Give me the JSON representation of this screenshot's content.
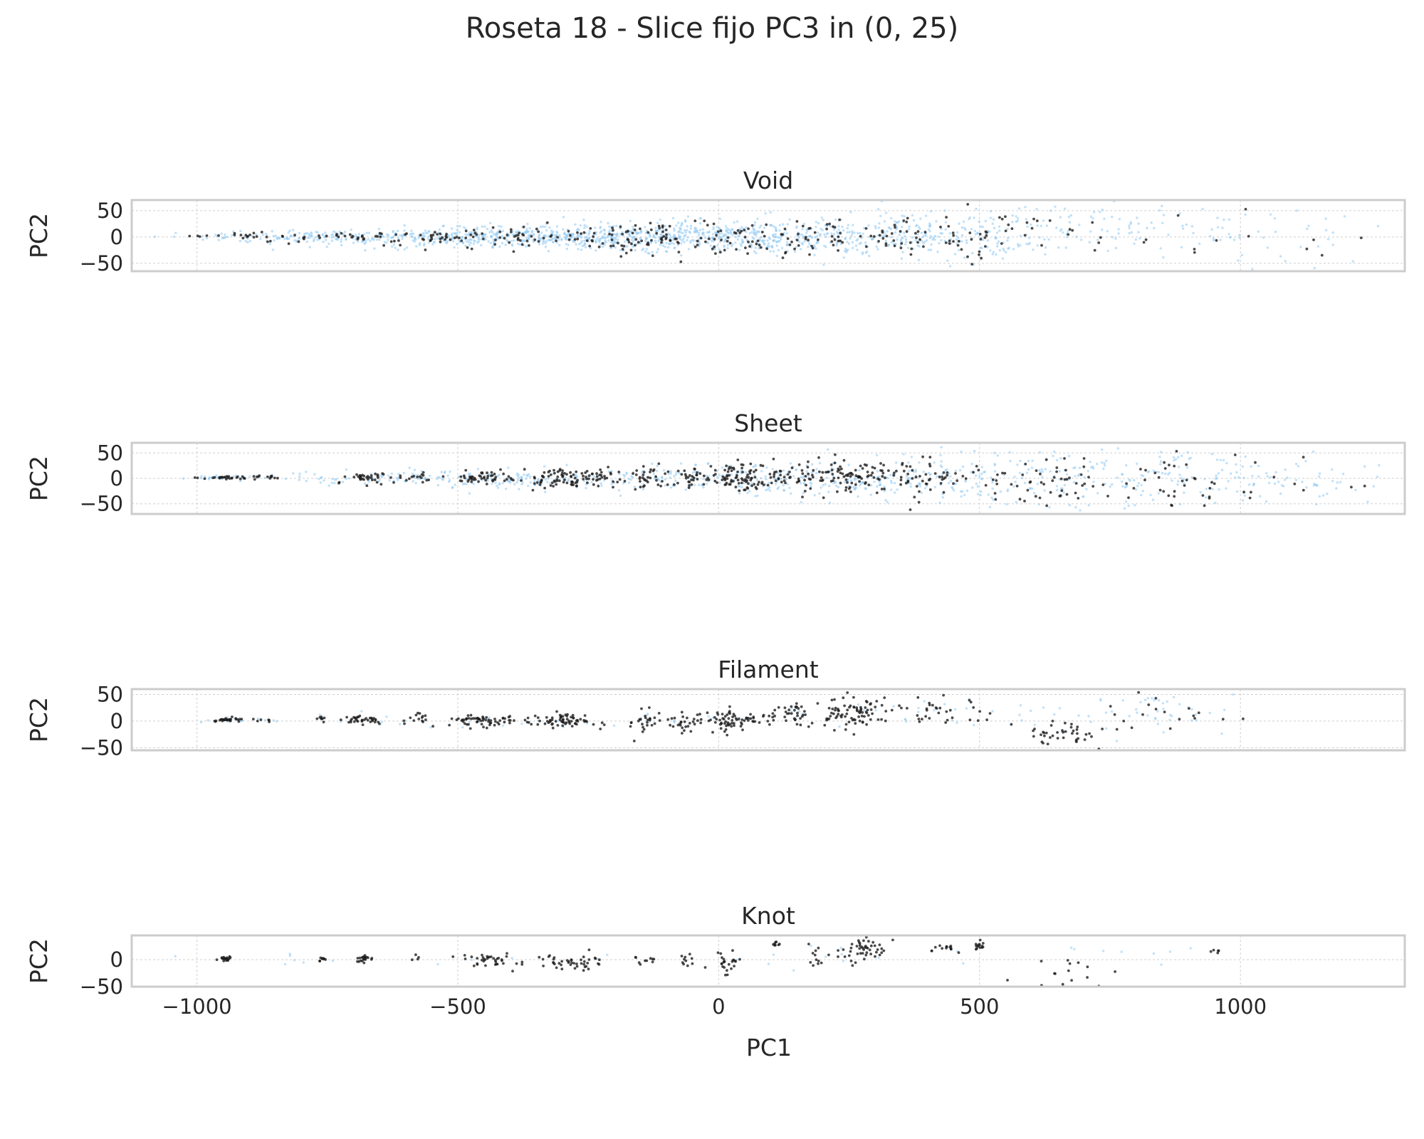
{
  "chart_data": {
    "type": "scatter",
    "title": "Roseta 18 - Slice fijo PC3 in (0, 25)",
    "xlabel": "PC1",
    "ylabel": "PC2",
    "xlim": [
      -1125,
      1315
    ],
    "x_ticks": [
      -1000,
      -500,
      0,
      500,
      1000
    ],
    "x_tick_labels": [
      "−1000",
      "−500",
      "0",
      "500",
      "1000"
    ],
    "grid": true,
    "colors": {
      "background_points": "#8ec9f2",
      "highlight_points": "#1e1e1e"
    },
    "panels": [
      {
        "title": "Void",
        "ylim": [
          -65,
          70
        ],
        "y_ticks": [
          50,
          0,
          -50
        ],
        "y_tick_labels": [
          "50",
          "0",
          "−50"
        ],
        "highlight_clusters": [
          {
            "x": -985,
            "y": 2,
            "sx": 12,
            "sy": 1,
            "n": 5
          },
          {
            "x": -900,
            "y": 2,
            "sx": 25,
            "sy": 3,
            "n": 12
          },
          {
            "x": -740,
            "y": 0,
            "sx": 60,
            "sy": 5,
            "n": 30
          },
          {
            "x": -560,
            "y": 0,
            "sx": 60,
            "sy": 8,
            "n": 35
          },
          {
            "x": -400,
            "y": 0,
            "sx": 70,
            "sy": 11,
            "n": 45
          },
          {
            "x": -200,
            "y": 0,
            "sx": 80,
            "sy": 14,
            "n": 60
          },
          {
            "x": 0,
            "y": 0,
            "sx": 90,
            "sy": 16,
            "n": 70
          },
          {
            "x": 200,
            "y": 0,
            "sx": 80,
            "sy": 18,
            "n": 50
          },
          {
            "x": 380,
            "y": 5,
            "sx": 60,
            "sy": 20,
            "n": 35
          },
          {
            "x": 520,
            "y": 5,
            "sx": 45,
            "sy": 25,
            "n": 25
          },
          {
            "x": 720,
            "y": 15,
            "sx": 90,
            "sy": 22,
            "n": 14
          },
          {
            "x": 1050,
            "y": -5,
            "sx": 90,
            "sy": 40,
            "n": 10
          }
        ],
        "background_clusters": [
          {
            "x": -720,
            "y": 0,
            "sx": 150,
            "sy": 6,
            "n": 180
          },
          {
            "x": -420,
            "y": 0,
            "sx": 140,
            "sy": 10,
            "n": 320
          },
          {
            "x": -120,
            "y": 0,
            "sx": 150,
            "sy": 14,
            "n": 420
          },
          {
            "x": 180,
            "y": 0,
            "sx": 150,
            "sy": 17,
            "n": 300
          },
          {
            "x": 470,
            "y": 5,
            "sx": 120,
            "sy": 22,
            "n": 180
          },
          {
            "x": 800,
            "y": 15,
            "sx": 150,
            "sy": 28,
            "n": 90
          },
          {
            "x": 1100,
            "y": 0,
            "sx": 100,
            "sy": 35,
            "n": 30
          }
        ]
      },
      {
        "title": "Sheet",
        "ylim": [
          -70,
          70
        ],
        "y_ticks": [
          50,
          0,
          -50
        ],
        "y_tick_labels": [
          "50",
          "0",
          "−50"
        ],
        "highlight_clusters": [
          {
            "x": -940,
            "y": 2,
            "sx": 25,
            "sy": 2,
            "n": 30
          },
          {
            "x": -860,
            "y": 2,
            "sx": 12,
            "sy": 2,
            "n": 8
          },
          {
            "x": -680,
            "y": 0,
            "sx": 22,
            "sy": 5,
            "n": 35
          },
          {
            "x": -580,
            "y": 2,
            "sx": 18,
            "sy": 5,
            "n": 15
          },
          {
            "x": -450,
            "y": 0,
            "sx": 30,
            "sy": 7,
            "n": 50
          },
          {
            "x": -310,
            "y": 0,
            "sx": 25,
            "sy": 10,
            "n": 60
          },
          {
            "x": -230,
            "y": 0,
            "sx": 25,
            "sy": 10,
            "n": 40
          },
          {
            "x": -140,
            "y": 0,
            "sx": 15,
            "sy": 10,
            "n": 30
          },
          {
            "x": -60,
            "y": 0,
            "sx": 20,
            "sy": 10,
            "n": 30
          },
          {
            "x": 30,
            "y": 0,
            "sx": 30,
            "sy": 12,
            "n": 80
          },
          {
            "x": 130,
            "y": 5,
            "sx": 35,
            "sy": 14,
            "n": 50
          },
          {
            "x": 250,
            "y": 0,
            "sx": 40,
            "sy": 15,
            "n": 80
          },
          {
            "x": 400,
            "y": 0,
            "sx": 50,
            "sy": 20,
            "n": 60
          },
          {
            "x": 600,
            "y": -10,
            "sx": 70,
            "sy": 22,
            "n": 50
          },
          {
            "x": 850,
            "y": -5,
            "sx": 80,
            "sy": 28,
            "n": 40
          },
          {
            "x": 1100,
            "y": 0,
            "sx": 70,
            "sy": 30,
            "n": 8
          }
        ],
        "background_clusters": [
          {
            "x": -940,
            "y": 2,
            "sx": 35,
            "sy": 2,
            "n": 25
          },
          {
            "x": -660,
            "y": 0,
            "sx": 110,
            "sy": 6,
            "n": 80
          },
          {
            "x": -380,
            "y": 0,
            "sx": 110,
            "sy": 9,
            "n": 120
          },
          {
            "x": -100,
            "y": 0,
            "sx": 110,
            "sy": 12,
            "n": 120
          },
          {
            "x": 200,
            "y": 0,
            "sx": 120,
            "sy": 18,
            "n": 160
          },
          {
            "x": 500,
            "y": 0,
            "sx": 120,
            "sy": 25,
            "n": 160
          },
          {
            "x": 850,
            "y": 0,
            "sx": 150,
            "sy": 30,
            "n": 150
          },
          {
            "x": 1150,
            "y": 0,
            "sx": 80,
            "sy": 30,
            "n": 40
          }
        ]
      },
      {
        "title": "Filament",
        "ylim": [
          -55,
          60
        ],
        "y_ticks": [
          50,
          0,
          -50
        ],
        "y_tick_labels": [
          "50",
          "0",
          "−50"
        ],
        "highlight_clusters": [
          {
            "x": -945,
            "y": 2,
            "sx": 15,
            "sy": 2,
            "n": 30
          },
          {
            "x": -870,
            "y": 2,
            "sx": 15,
            "sy": 2,
            "n": 6
          },
          {
            "x": -760,
            "y": 5,
            "sx": 5,
            "sy": 3,
            "n": 8
          },
          {
            "x": -680,
            "y": 2,
            "sx": 20,
            "sy": 5,
            "n": 35
          },
          {
            "x": -580,
            "y": 5,
            "sx": 12,
            "sy": 5,
            "n": 15
          },
          {
            "x": -450,
            "y": 0,
            "sx": 30,
            "sy": 6,
            "n": 60
          },
          {
            "x": -300,
            "y": 0,
            "sx": 35,
            "sy": 8,
            "n": 70
          },
          {
            "x": -140,
            "y": 0,
            "sx": 12,
            "sy": 10,
            "n": 25
          },
          {
            "x": -70,
            "y": 0,
            "sx": 20,
            "sy": 10,
            "n": 25
          },
          {
            "x": 20,
            "y": 0,
            "sx": 25,
            "sy": 10,
            "n": 70
          },
          {
            "x": 140,
            "y": 10,
            "sx": 25,
            "sy": 12,
            "n": 40
          },
          {
            "x": 260,
            "y": 15,
            "sx": 30,
            "sy": 15,
            "n": 80
          },
          {
            "x": 440,
            "y": 20,
            "sx": 40,
            "sy": 15,
            "n": 35
          },
          {
            "x": 650,
            "y": -25,
            "sx": 40,
            "sy": 12,
            "n": 40
          },
          {
            "x": 850,
            "y": 25,
            "sx": 60,
            "sy": 20,
            "n": 20
          }
        ],
        "background_clusters": [
          {
            "x": -900,
            "y": 2,
            "sx": 40,
            "sy": 2,
            "n": 10
          },
          {
            "x": -300,
            "y": 0,
            "sx": 300,
            "sy": 8,
            "n": 40
          },
          {
            "x": 400,
            "y": 10,
            "sx": 200,
            "sy": 20,
            "n": 40
          },
          {
            "x": 850,
            "y": 20,
            "sx": 80,
            "sy": 25,
            "n": 40
          }
        ]
      },
      {
        "title": "Knot",
        "ylim": [
          -50,
          45
        ],
        "y_ticks": [
          0,
          -50
        ],
        "y_tick_labels": [
          "0",
          "−50"
        ],
        "highlight_clusters": [
          {
            "x": -945,
            "y": 2,
            "sx": 6,
            "sy": 2,
            "n": 20
          },
          {
            "x": -760,
            "y": 2,
            "sx": 3,
            "sy": 2,
            "n": 10
          },
          {
            "x": -680,
            "y": 2,
            "sx": 10,
            "sy": 3,
            "n": 22
          },
          {
            "x": -580,
            "y": 3,
            "sx": 4,
            "sy": 3,
            "n": 4
          },
          {
            "x": -440,
            "y": 0,
            "sx": 25,
            "sy": 6,
            "n": 35
          },
          {
            "x": -290,
            "y": -5,
            "sx": 35,
            "sy": 8,
            "n": 45
          },
          {
            "x": -140,
            "y": 0,
            "sx": 10,
            "sy": 8,
            "n": 10
          },
          {
            "x": -65,
            "y": 0,
            "sx": 10,
            "sy": 6,
            "n": 10
          },
          {
            "x": 20,
            "y": -5,
            "sx": 15,
            "sy": 12,
            "n": 25
          },
          {
            "x": 110,
            "y": 30,
            "sx": 5,
            "sy": 3,
            "n": 8
          },
          {
            "x": 190,
            "y": 5,
            "sx": 10,
            "sy": 10,
            "n": 12
          },
          {
            "x": 280,
            "y": 20,
            "sx": 25,
            "sy": 15,
            "n": 50
          },
          {
            "x": 430,
            "y": 20,
            "sx": 15,
            "sy": 5,
            "n": 14
          },
          {
            "x": 500,
            "y": 25,
            "sx": 5,
            "sy": 5,
            "n": 14
          },
          {
            "x": 650,
            "y": -25,
            "sx": 50,
            "sy": 15,
            "n": 18
          },
          {
            "x": 950,
            "y": 15,
            "sx": 5,
            "sy": 3,
            "n": 5
          }
        ],
        "background_clusters": [
          {
            "x": -500,
            "y": 0,
            "sx": 250,
            "sy": 6,
            "n": 12
          },
          {
            "x": 200,
            "y": 10,
            "sx": 200,
            "sy": 15,
            "n": 12
          },
          {
            "x": 800,
            "y": 10,
            "sx": 120,
            "sy": 15,
            "n": 8
          }
        ]
      }
    ]
  }
}
